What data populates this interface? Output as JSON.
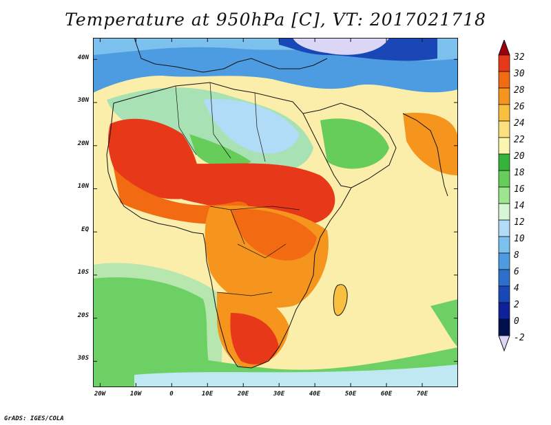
{
  "title": "Temperature at 950hPa [C], VT: 2017021718",
  "credit": "GrADS: IGES/COLA",
  "map": {
    "lat_labels": [
      "40N",
      "30N",
      "20N",
      "10N",
      "EQ",
      "10S",
      "20S",
      "30S"
    ],
    "lat_values": [
      40,
      30,
      20,
      10,
      0,
      -10,
      -20,
      -30
    ],
    "lon_labels": [
      "20W",
      "10W",
      "0",
      "10E",
      "20E",
      "30E",
      "40E",
      "50E",
      "60E",
      "70E"
    ],
    "lon_values": [
      -20,
      -10,
      0,
      10,
      20,
      30,
      40,
      50,
      60,
      70
    ],
    "lat_range": [
      -36,
      45
    ],
    "lon_range": [
      -22,
      80
    ],
    "variable": "Temperature",
    "level": "950hPa",
    "units": "C",
    "valid_time": "2017021718"
  },
  "colorbar": {
    "labels": [
      "32",
      "30",
      "28",
      "26",
      "24",
      "22",
      "20",
      "18",
      "16",
      "14",
      "12",
      "10",
      "8",
      "6",
      "4",
      "2",
      "0",
      "-2"
    ],
    "colors": [
      "#a0000e",
      "#e8381a",
      "#f26a12",
      "#f6951e",
      "#f9c040",
      "#fce07e",
      "#fbf5b0",
      "#35b43c",
      "#66cc5a",
      "#9de58e",
      "#d6f6d6",
      "#b0dcf7",
      "#7cc0ee",
      "#4d9be0",
      "#2d70cc",
      "#1a47b6",
      "#0e209a",
      "#00104f",
      "#dcd6f6"
    ]
  }
}
